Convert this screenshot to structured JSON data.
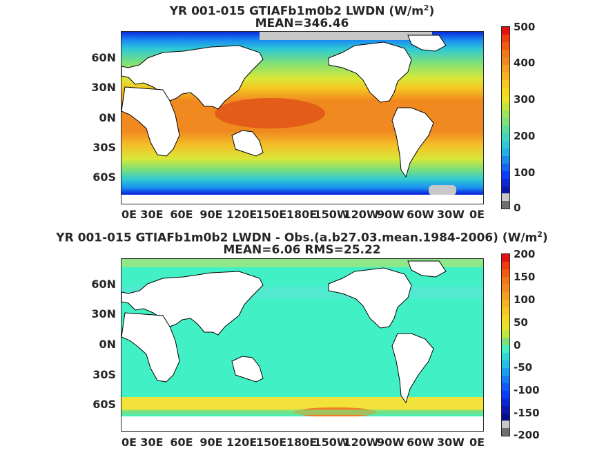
{
  "panels": [
    {
      "title_line1": "YR 001-015 GTIAFb1m0b2 LWDN (W/m",
      "title_sup": "2",
      "title_close": ")",
      "title_line2": "MEAN=346.46",
      "ylabels": [
        "60N",
        "30N",
        "0N",
        "30S",
        "60S"
      ],
      "xlabels": [
        "0E",
        "30E",
        "60E",
        "90E",
        "120E",
        "150E",
        "180E",
        "150W",
        "120W",
        "90W",
        "60W",
        "30W",
        "0E"
      ],
      "colorbar_labels": [
        "500",
        "400",
        "300",
        "200",
        "100",
        "0"
      ],
      "colors": {
        "tropics": "#f08a20",
        "warm_pool": "#e05518",
        "subtropics": "#f2e01e",
        "midlat": "#7de07a",
        "highlat": "#2ec9d6",
        "polar": "#0a3cff",
        "ice": "#c8c8c8",
        "land": "#ffffff"
      }
    },
    {
      "title_line1": "YR 001-015 GTIAFb1m0b2 LWDN - Obs.(a.b27.03.mean.1984-2006) (W/m",
      "title_sup": "2",
      "title_close": ")",
      "title_line2": "MEAN=6.06 RMS=25.22",
      "ylabels": [
        "60N",
        "30N",
        "0N",
        "30S",
        "60S"
      ],
      "xlabels": [
        "0E",
        "30E",
        "60E",
        "90E",
        "120E",
        "150E",
        "180E",
        "150W",
        "120W",
        "90W",
        "60W",
        "30W",
        "0E"
      ],
      "colorbar_labels": [
        "200",
        "150",
        "100",
        "50",
        "0",
        "-50",
        "-100",
        "-150",
        "-200"
      ],
      "colors": {
        "ocean": "#42f0c6",
        "band": "#f2e23a",
        "hot": "#f57a1c",
        "land": "#ffffff"
      }
    }
  ]
}
